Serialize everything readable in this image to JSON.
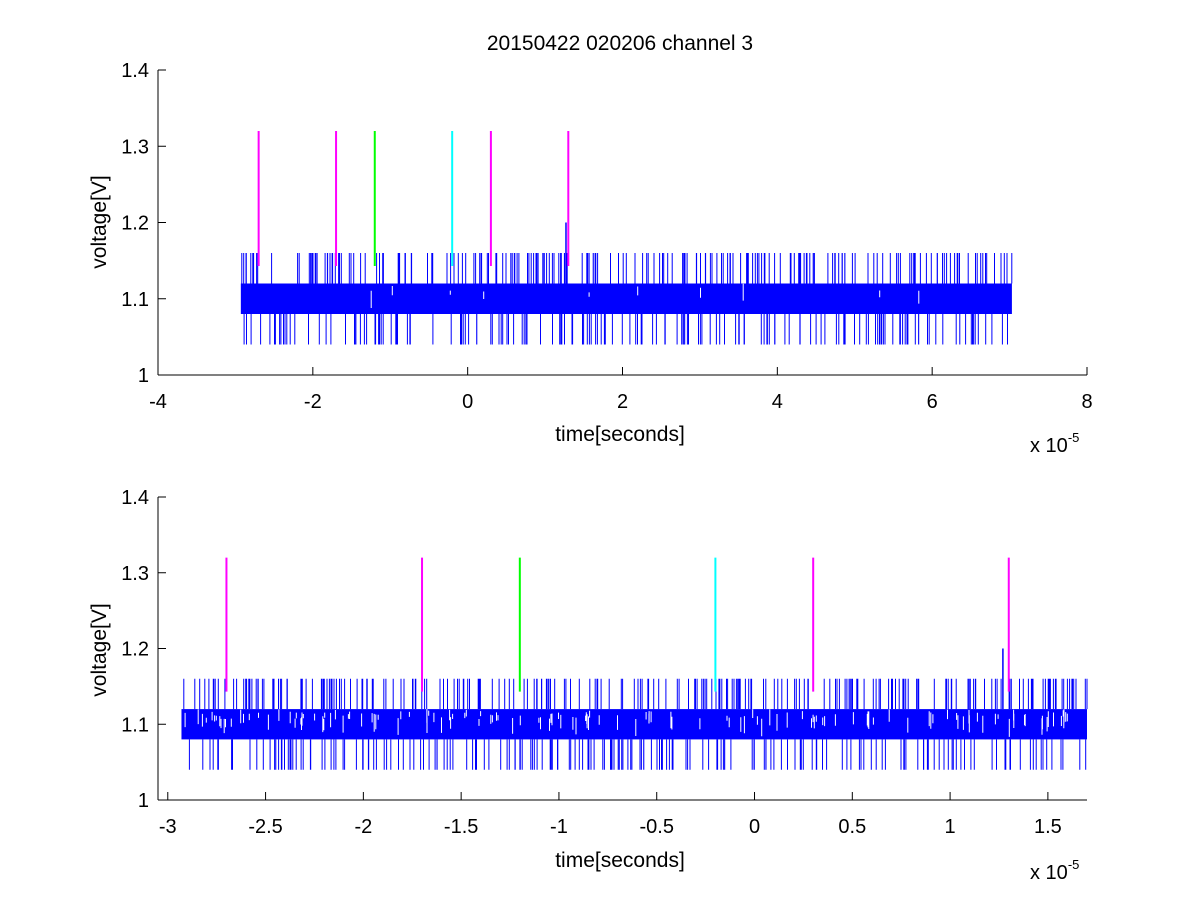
{
  "chart_data": [
    {
      "type": "line",
      "title": "20150422 020206 channel 3",
      "xlabel": "time[seconds]",
      "ylabel": "voltage[V]",
      "x_multiplier_label": "x 10",
      "x_multiplier_exponent": "-5",
      "xlim": [
        -4,
        8
      ],
      "ylim": [
        1,
        1.4
      ],
      "xticks": [
        -4,
        -2,
        0,
        2,
        4,
        6,
        8
      ],
      "xtick_labels": [
        "-4",
        "-2",
        "0",
        "2",
        "4",
        "6",
        "8"
      ],
      "yticks": [
        1,
        1.1,
        1.2,
        1.3,
        1.4
      ],
      "ytick_labels": [
        "1",
        "1.1",
        "1.2",
        "1.3",
        "1.4"
      ],
      "grid": false,
      "series": [
        {
          "color": "#0000ff",
          "x_range": [
            -2.93,
            7.03
          ],
          "baseline_low": 1.08,
          "baseline_high": 1.12,
          "spike_high": 1.16,
          "spike_low": 1.04,
          "peak": {
            "x": 1.27,
            "y": 1.2
          }
        }
      ],
      "markers": [
        {
          "x": -2.7,
          "y_low": 1.143,
          "y_high": 1.32,
          "color": "#ff00ff"
        },
        {
          "x": -1.7,
          "y_low": 1.143,
          "y_high": 1.32,
          "color": "#ff00ff"
        },
        {
          "x": -1.2,
          "y_low": 1.143,
          "y_high": 1.32,
          "color": "#00ff00"
        },
        {
          "x": -0.2,
          "y_low": 1.143,
          "y_high": 1.32,
          "color": "#00ffff"
        },
        {
          "x": 0.3,
          "y_low": 1.143,
          "y_high": 1.32,
          "color": "#ff00ff"
        },
        {
          "x": 1.3,
          "y_low": 1.143,
          "y_high": 1.32,
          "color": "#ff00ff"
        }
      ]
    },
    {
      "type": "line",
      "title": "",
      "xlabel": "time[seconds]",
      "ylabel": "voltage[V]",
      "x_multiplier_label": "x 10",
      "x_multiplier_exponent": "-5",
      "xlim": [
        -3.05,
        1.7
      ],
      "ylim": [
        1,
        1.4
      ],
      "xticks": [
        -3,
        -2.5,
        -2,
        -1.5,
        -1,
        -0.5,
        0,
        0.5,
        1,
        1.5
      ],
      "xtick_labels": [
        "-3",
        "-2.5",
        "-2",
        "-1.5",
        "-1",
        "-0.5",
        "0",
        "0.5",
        "1",
        "1.5"
      ],
      "yticks": [
        1,
        1.1,
        1.2,
        1.3,
        1.4
      ],
      "ytick_labels": [
        "1",
        "1.1",
        "1.2",
        "1.3",
        "1.4"
      ],
      "grid": false,
      "series": [
        {
          "color": "#0000ff",
          "x_range": [
            -2.93,
            1.7
          ],
          "baseline_low": 1.08,
          "baseline_high": 1.12,
          "spike_high": 1.16,
          "spike_low": 1.04,
          "peak": {
            "x": 1.27,
            "y": 1.2
          }
        }
      ],
      "markers": [
        {
          "x": -2.7,
          "y_low": 1.143,
          "y_high": 1.32,
          "color": "#ff00ff"
        },
        {
          "x": -1.7,
          "y_low": 1.143,
          "y_high": 1.32,
          "color": "#ff00ff"
        },
        {
          "x": -1.2,
          "y_low": 1.143,
          "y_high": 1.32,
          "color": "#00ff00"
        },
        {
          "x": -0.2,
          "y_low": 1.143,
          "y_high": 1.32,
          "color": "#00ffff"
        },
        {
          "x": 0.3,
          "y_low": 1.143,
          "y_high": 1.32,
          "color": "#ff00ff"
        },
        {
          "x": 1.3,
          "y_low": 1.143,
          "y_high": 1.32,
          "color": "#ff00ff"
        }
      ]
    }
  ]
}
